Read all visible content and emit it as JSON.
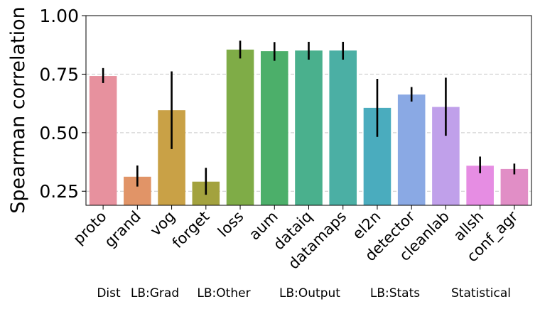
{
  "chart_data": {
    "type": "bar",
    "title": "",
    "xlabel": "",
    "ylabel": "Spearman correlation",
    "ylim": [
      0.19,
      1.0
    ],
    "yticks": [
      0.25,
      0.5,
      0.75,
      1.0
    ],
    "ytick_labels": [
      "0.25",
      "0.50",
      "0.75",
      "1.00"
    ],
    "grid": "horizontal dashed",
    "categories": [
      "proto",
      "grand",
      "vog",
      "forget",
      "loss",
      "aum",
      "dataiq",
      "datamaps",
      "el2n",
      "detector",
      "cleanlab",
      "allsh",
      "conf_agr"
    ],
    "values": [
      0.742,
      0.312,
      0.596,
      0.291,
      0.855,
      0.848,
      0.851,
      0.851,
      0.606,
      0.663,
      0.61,
      0.359,
      0.345
    ],
    "error_low": [
      0.712,
      0.27,
      0.43,
      0.235,
      0.817,
      0.807,
      0.812,
      0.812,
      0.482,
      0.633,
      0.487,
      0.327,
      0.322
    ],
    "error_high": [
      0.776,
      0.36,
      0.762,
      0.35,
      0.893,
      0.887,
      0.888,
      0.888,
      0.73,
      0.695,
      0.735,
      0.398,
      0.368
    ],
    "colors": [
      "#e7919e",
      "#e19467",
      "#c9a146",
      "#a3a23e",
      "#7fac47",
      "#4caf6a",
      "#4ab08d",
      "#4bafa4",
      "#4aacbe",
      "#8aa9e4",
      "#c0a0ea",
      "#e68de3",
      "#e18ec6"
    ],
    "groups": [
      {
        "label": "Dist"
      },
      {
        "label": "LB:Grad"
      },
      {
        "label": "LB:Other"
      },
      {
        "label": "LB:Output"
      },
      {
        "label": "LB:Stats"
      },
      {
        "label": "Statistical"
      }
    ]
  }
}
